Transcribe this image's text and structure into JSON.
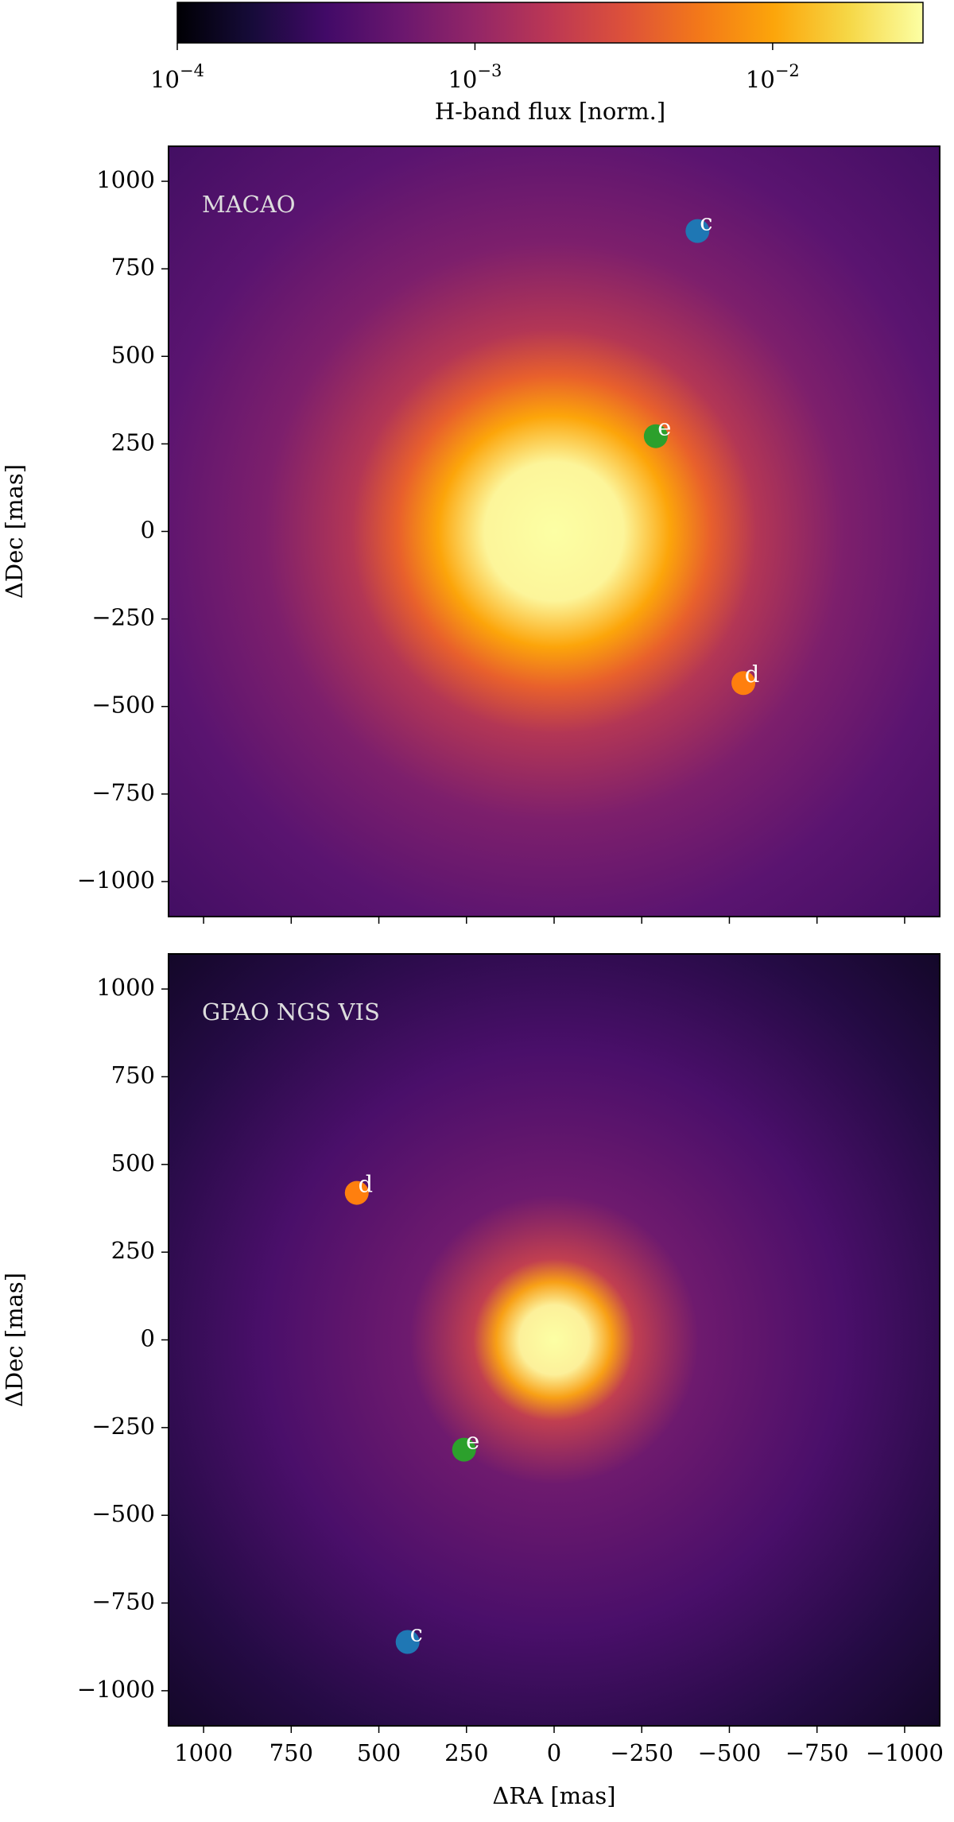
{
  "chart_data": [
    {
      "type": "colorbar",
      "label": "H-band flux [norm.]",
      "log": true,
      "colormap": "inferno",
      "lim": [
        0.0001,
        0.032
      ],
      "ticks": [
        {
          "value": 0.0001,
          "label": "10",
          "exponent": "−4"
        },
        {
          "value": 0.001,
          "label": "10",
          "exponent": "−3"
        },
        {
          "value": 0.01,
          "label": "10",
          "exponent": "−2"
        }
      ]
    },
    {
      "type": "scatter",
      "annotation": "MACAO",
      "ylabel": "ΔDec [mas]",
      "xlim": [
        1100,
        -1100
      ],
      "ylim": [
        -1100,
        1100
      ],
      "xticks": [
        1000,
        750,
        500,
        250,
        0,
        -250,
        -500,
        -750,
        -1000
      ],
      "yticks": [
        {
          "value": -1000,
          "label": "−1000"
        },
        {
          "value": -750,
          "label": "−750"
        },
        {
          "value": -500,
          "label": "−500"
        },
        {
          "value": -250,
          "label": "−250"
        },
        0,
        250,
        500,
        750,
        1000
      ],
      "series": [
        {
          "name": "c",
          "color": "#1f77b4",
          "x": [
            -409
          ],
          "values": [
            858
          ]
        },
        {
          "name": "e",
          "color": "#2ca02c",
          "x": [
            -290
          ],
          "values": [
            272
          ]
        },
        {
          "name": "d",
          "color": "#ff7f0e",
          "x": [
            -540
          ],
          "values": [
            -433
          ]
        }
      ]
    },
    {
      "type": "scatter",
      "annotation": "GPAO NGS VIS",
      "ylabel": "ΔDec [mas]",
      "xlabel": "ΔRA [mas]",
      "xlim": [
        1100,
        -1100
      ],
      "ylim": [
        -1100,
        1100
      ],
      "xticks": [
        1000,
        750,
        500,
        250,
        0,
        {
          "value": -250,
          "label": "−250"
        },
        {
          "value": -500,
          "label": "−500"
        },
        {
          "value": -750,
          "label": "−750"
        },
        {
          "value": -1000,
          "label": "−1000"
        }
      ],
      "yticks": [
        {
          "value": -1000,
          "label": "−1000"
        },
        {
          "value": -750,
          "label": "−750"
        },
        {
          "value": -500,
          "label": "−500"
        },
        {
          "value": -250,
          "label": "−250"
        },
        0,
        250,
        500,
        750,
        1000
      ],
      "series": [
        {
          "name": "d",
          "color": "#ff7f0e",
          "x": [
            563
          ],
          "values": [
            419
          ]
        },
        {
          "name": "e",
          "color": "#2ca02c",
          "x": [
            257
          ],
          "values": [
            -313
          ]
        },
        {
          "name": "c",
          "color": "#1f77b4",
          "x": [
            418
          ],
          "values": [
            -861
          ]
        }
      ]
    }
  ]
}
